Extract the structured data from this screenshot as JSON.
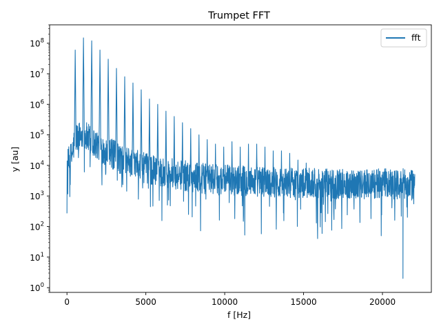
{
  "chart_data": {
    "type": "line",
    "title": "Trumpet FFT",
    "xlabel": "f [Hz]",
    "ylabel": "y [au]",
    "xlim": [
      -1100,
      23100
    ],
    "ylim": [
      0.7,
      400000000.0
    ],
    "yscale": "log",
    "grid": false,
    "legend": {
      "placement": "top-right",
      "entries": [
        "fft"
      ]
    },
    "x_ticks": [
      {
        "value": 0,
        "label": "0"
      },
      {
        "value": 5000,
        "label": "5000"
      },
      {
        "value": 10000,
        "label": "10000"
      },
      {
        "value": 15000,
        "label": "15000"
      },
      {
        "value": 20000,
        "label": "20000"
      }
    ],
    "y_ticks": [
      {
        "value": 1,
        "base": "10",
        "exp": "0"
      },
      {
        "value": 10,
        "base": "10",
        "exp": "1"
      },
      {
        "value": 100,
        "base": "10",
        "exp": "2"
      },
      {
        "value": 1000,
        "base": "10",
        "exp": "3"
      },
      {
        "value": 10000,
        "base": "10",
        "exp": "4"
      },
      {
        "value": 100000,
        "base": "10",
        "exp": "5"
      },
      {
        "value": 1000000,
        "base": "10",
        "exp": "6"
      },
      {
        "value": 10000000,
        "base": "10",
        "exp": "7"
      },
      {
        "value": 100000000,
        "base": "10",
        "exp": "8"
      }
    ],
    "series": [
      {
        "name": "fft",
        "color": "#1f77b4",
        "x_range": [
          0,
          22050
        ],
        "fundamental_hz": 523,
        "harmonic_peaks": [
          [
            523,
            60000000.0
          ],
          [
            1046,
            150000000.0
          ],
          [
            1569,
            120000000.0
          ],
          [
            2092,
            60000000.0
          ],
          [
            2615,
            30000000.0
          ],
          [
            3138,
            15000000.0
          ],
          [
            3661,
            8000000.0
          ],
          [
            4184,
            5000000.0
          ],
          [
            4707,
            3000000.0
          ],
          [
            5230,
            1500000.0
          ],
          [
            5753,
            1000000.0
          ],
          [
            6276,
            600000.0
          ],
          [
            6799,
            400000.0
          ],
          [
            7322,
            250000.0
          ],
          [
            7845,
            160000.0
          ],
          [
            8368,
            100000.0
          ],
          [
            8891,
            70000.0
          ],
          [
            9414,
            50000.0
          ],
          [
            9937,
            40000.0
          ],
          [
            10460,
            60000.0
          ],
          [
            10983,
            40000.0
          ],
          [
            11506,
            50000.0
          ],
          [
            12029,
            50000.0
          ],
          [
            12552,
            40000.0
          ],
          [
            13075,
            30000.0
          ],
          [
            13598,
            30000.0
          ],
          [
            14121,
            25000.0
          ],
          [
            14644,
            15000.0
          ],
          [
            15167,
            12000.0
          ],
          [
            15690,
            8000.0
          ]
        ],
        "noise_floor": [
          [
            0,
            10000
          ],
          [
            300,
            20000
          ],
          [
            523,
            80000
          ],
          [
            1000,
            100000
          ],
          [
            1600,
            60000
          ],
          [
            2500,
            30000
          ],
          [
            3500,
            15000
          ],
          [
            5000,
            8000
          ],
          [
            7000,
            5000
          ],
          [
            9000,
            3500
          ],
          [
            12000,
            3000
          ],
          [
            16000,
            2500
          ],
          [
            19000,
            2500
          ],
          [
            22050,
            2500
          ]
        ],
        "min_dip": [
          21300,
          2
        ]
      }
    ]
  }
}
